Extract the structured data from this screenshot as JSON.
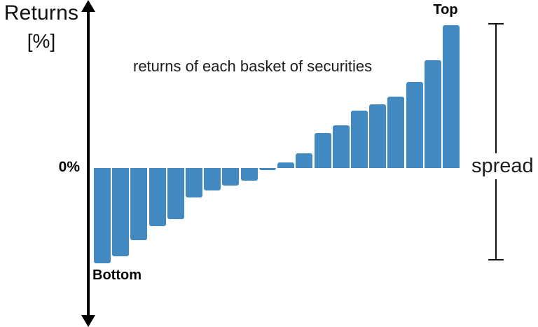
{
  "y_axis": {
    "label_line1": "Returns",
    "label_line2": "[%]",
    "zero_tick": "0%"
  },
  "labels": {
    "bottom_basket": "Bottom",
    "top_basket": "Top",
    "annotation": "returns of each basket of securities",
    "spread": "spread"
  },
  "colors": {
    "bar": "#4289c2",
    "axis": "#000000",
    "text": "#1d1d1d"
  },
  "chart_data": {
    "type": "bar",
    "title": "",
    "annotation": "returns of each basket of securities",
    "ylabel": "Returns [%]",
    "xlabel": "",
    "y_tick_labels": [
      "0%"
    ],
    "axis_note": "only the 0% level is labeled; bar values are relative magnitudes estimated from pixel heights (arbitrary units)",
    "first_bar_label": "Bottom",
    "last_bar_label": "Top",
    "spread_label": "spread",
    "spread_note": "bracket spans from the top of the highest bar down to the bottom of the lowest bar",
    "n_bars": 20,
    "values": [
      -13.6,
      -12.6,
      -10.3,
      -8.3,
      -7.3,
      -4.2,
      -3.2,
      -2.5,
      -1.8,
      -0.3,
      0.8,
      2.1,
      5.0,
      6.1,
      8.2,
      9.1,
      10.2,
      12.3,
      15.4,
      20.4
    ],
    "ylim": [
      -16,
      22
    ],
    "grid": false,
    "legend": null,
    "bar_color": "#4289c2"
  }
}
